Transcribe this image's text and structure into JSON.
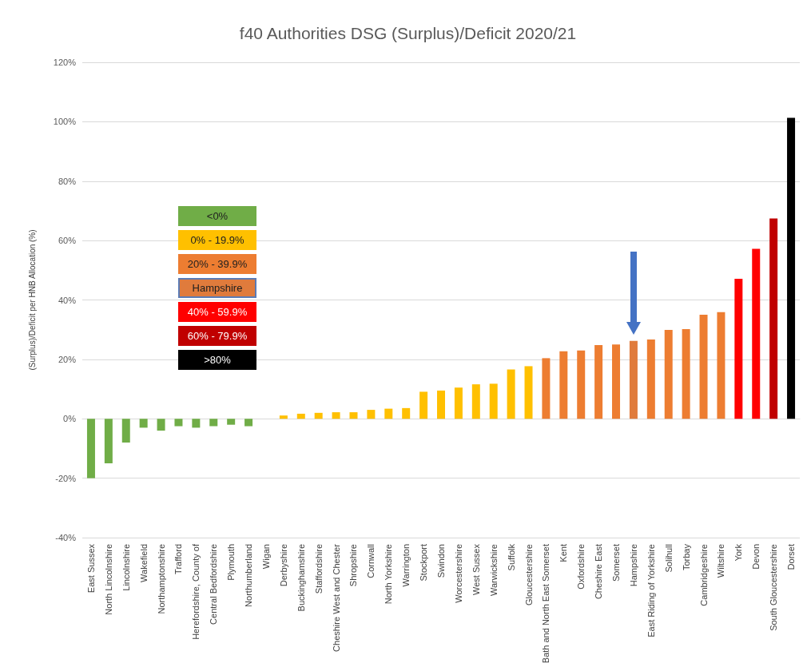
{
  "chart_data": {
    "type": "bar",
    "title": "f40 Authorities DSG (Surplus)/Deficit 2020/21",
    "ylabel": "(Surplus)/Deficit per HNB Allocation (%)",
    "categories": [
      "East Sussex",
      "North Lincolnshire",
      "Lincolnshire",
      "Wakefield",
      "Northamptonshire",
      "Trafford",
      "Herefordshire, County of",
      "Central Bedfordshire",
      "Plymouth",
      "Northumberland",
      "Wigan",
      "Derbyshire",
      "Buckinghamshire",
      "Staffordshire",
      "Cheshire West and Chester",
      "Shropshire",
      "Cornwall",
      "North Yorkshire",
      "Warrington",
      "Stockport",
      "Swindon",
      "Worcestershire",
      "West Sussex",
      "Warwickshire",
      "Suffolk",
      "Gloucestershire",
      "Bath and North East Somerset",
      "Kent",
      "Oxfordshire",
      "Cheshire East",
      "Somerset",
      "Hampshire",
      "East Riding of Yorkshire",
      "Solihull",
      "Torbay",
      "Cambridgeshire",
      "Wiltshire",
      "York",
      "Devon",
      "South Gloucestershire",
      "Dorset"
    ],
    "series": [
      {
        "name": "<0%",
        "color": "#70ad47",
        "values": [
          -20,
          -15,
          -8,
          -3,
          -4,
          -2.5,
          -3,
          -2.5,
          -2,
          -2.5,
          null,
          null,
          null,
          null,
          null,
          null,
          null,
          null,
          null,
          null,
          null,
          null,
          null,
          null,
          null,
          null,
          null,
          null,
          null,
          null,
          null,
          null,
          null,
          null,
          null,
          null,
          null,
          null,
          null,
          null,
          null
        ]
      },
      {
        "name": "0% - 19.9%",
        "color": "#ffc000",
        "values": [
          null,
          null,
          null,
          null,
          null,
          null,
          null,
          null,
          null,
          null,
          0,
          1.1,
          1.7,
          2.0,
          2.2,
          2.2,
          3.0,
          3.4,
          3.6,
          9.1,
          9.5,
          10.5,
          11.6,
          11.8,
          16.6,
          17.7,
          null,
          null,
          null,
          null,
          null,
          null,
          null,
          null,
          null,
          null,
          null,
          null,
          null,
          null,
          null
        ]
      },
      {
        "name": "20% - 39.9%",
        "color": "#ed7d31",
        "values": [
          null,
          null,
          null,
          null,
          null,
          null,
          null,
          null,
          null,
          null,
          null,
          null,
          null,
          null,
          null,
          null,
          null,
          null,
          null,
          null,
          null,
          null,
          null,
          null,
          null,
          null,
          20.4,
          22.7,
          23.0,
          24.8,
          25.0,
          null,
          26.7,
          29.9,
          30.2,
          35.0,
          35.9,
          null,
          null,
          null,
          null
        ]
      },
      {
        "name": "Hampshire",
        "color": "#e07b3c",
        "values": [
          null,
          null,
          null,
          null,
          null,
          null,
          null,
          null,
          null,
          null,
          null,
          null,
          null,
          null,
          null,
          null,
          null,
          null,
          null,
          null,
          null,
          null,
          null,
          null,
          null,
          null,
          null,
          null,
          null,
          null,
          null,
          26.2,
          null,
          null,
          null,
          null,
          null,
          null,
          null,
          null,
          null
        ]
      },
      {
        "name": "40% - 59.9%",
        "color": "#ff0000",
        "values": [
          null,
          null,
          null,
          null,
          null,
          null,
          null,
          null,
          null,
          null,
          null,
          null,
          null,
          null,
          null,
          null,
          null,
          null,
          null,
          null,
          null,
          null,
          null,
          null,
          null,
          null,
          null,
          null,
          null,
          null,
          null,
          null,
          null,
          null,
          null,
          null,
          null,
          47.1,
          57.2,
          null,
          null
        ]
      },
      {
        "name": "60% - 79.9%",
        "color": "#c00000",
        "values": [
          null,
          null,
          null,
          null,
          null,
          null,
          null,
          null,
          null,
          null,
          null,
          null,
          null,
          null,
          null,
          null,
          null,
          null,
          null,
          null,
          null,
          null,
          null,
          null,
          null,
          null,
          null,
          null,
          null,
          null,
          null,
          null,
          null,
          null,
          null,
          null,
          null,
          null,
          null,
          67.4,
          null
        ]
      },
      {
        "name": ">80%",
        "color": "#000000",
        "values": [
          null,
          null,
          null,
          null,
          null,
          null,
          null,
          null,
          null,
          null,
          null,
          null,
          null,
          null,
          null,
          null,
          null,
          null,
          null,
          null,
          null,
          null,
          null,
          null,
          null,
          null,
          null,
          null,
          null,
          null,
          null,
          null,
          null,
          null,
          null,
          null,
          null,
          null,
          null,
          null,
          101.3
        ]
      }
    ],
    "ylim": [
      -40,
      120
    ],
    "yticks": [
      {
        "value": -40,
        "label": "-40%"
      },
      {
        "value": -20,
        "label": "-20%"
      },
      {
        "value": 0,
        "label": "0%"
      },
      {
        "value": 20,
        "label": "20%"
      },
      {
        "value": 40,
        "label": "40%"
      },
      {
        "value": 60,
        "label": "60%"
      },
      {
        "value": 80,
        "label": "80%"
      },
      {
        "value": 100,
        "label": "100%"
      },
      {
        "value": 120,
        "label": "120%"
      }
    ],
    "grid": "y",
    "legend": "left"
  }
}
